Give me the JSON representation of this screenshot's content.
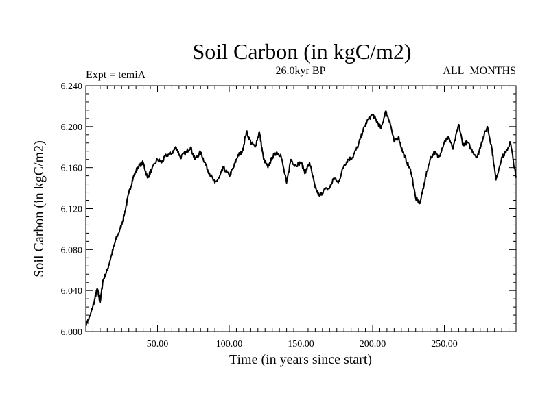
{
  "chart_data": {
    "type": "line",
    "title": "Soil Carbon (in kgC/m2)",
    "subtitle_left": "Expt = temiA",
    "subtitle_center": "26.0kyr BP",
    "subtitle_right": "ALL_MONTHS",
    "xlabel": "Time (in years since start)",
    "ylabel": "Soil Carbon (in kgC/m2)",
    "xlim": [
      0,
      300
    ],
    "ylim": [
      6.0,
      6.24
    ],
    "x_ticks": [
      50,
      100,
      150,
      200,
      250
    ],
    "x_tick_labels": [
      "50.00",
      "100.00",
      "150.00",
      "200.00",
      "250.00"
    ],
    "y_ticks": [
      6.0,
      6.04,
      6.08,
      6.12,
      6.16,
      6.2,
      6.24
    ],
    "y_tick_labels": [
      "6.000",
      "6.040",
      "6.080",
      "6.120",
      "6.160",
      "6.200",
      "6.240"
    ],
    "grid": false,
    "color": "#000000",
    "series": [
      {
        "name": "Soil Carbon",
        "x": [
          0,
          3,
          6,
          8,
          10,
          12,
          15,
          18,
          21,
          24,
          27,
          30,
          33,
          36,
          40,
          43,
          46,
          50,
          53,
          56,
          60,
          63,
          66,
          70,
          73,
          76,
          80,
          83,
          86,
          90,
          93,
          96,
          100,
          103,
          106,
          109,
          112,
          115,
          118,
          121,
          124,
          127,
          130,
          133,
          136,
          140,
          143,
          146,
          150,
          153,
          156,
          160,
          163,
          166,
          170,
          173,
          176,
          180,
          183,
          186,
          190,
          193,
          196,
          200,
          203,
          206,
          209,
          212,
          215,
          218,
          221,
          224,
          227,
          230,
          233,
          236,
          240,
          243,
          246,
          250,
          253,
          256,
          260,
          263,
          266,
          270,
          273,
          276,
          280,
          283,
          286,
          290,
          293,
          296,
          300
        ],
        "values": [
          6.007,
          6.015,
          6.03,
          6.042,
          6.028,
          6.05,
          6.06,
          6.075,
          6.09,
          6.1,
          6.115,
          6.135,
          6.15,
          6.16,
          6.165,
          6.15,
          6.158,
          6.168,
          6.165,
          6.172,
          6.174,
          6.18,
          6.17,
          6.175,
          6.18,
          6.168,
          6.175,
          6.165,
          6.155,
          6.145,
          6.15,
          6.16,
          6.152,
          6.16,
          6.172,
          6.175,
          6.195,
          6.185,
          6.18,
          6.195,
          6.168,
          6.16,
          6.17,
          6.175,
          6.172,
          6.145,
          6.168,
          6.162,
          6.165,
          6.155,
          6.165,
          6.14,
          6.132,
          6.138,
          6.14,
          6.15,
          6.145,
          6.162,
          6.168,
          6.17,
          6.182,
          6.195,
          6.205,
          6.212,
          6.205,
          6.198,
          6.215,
          6.205,
          6.185,
          6.19,
          6.175,
          6.165,
          6.155,
          6.13,
          6.125,
          6.145,
          6.168,
          6.175,
          6.17,
          6.185,
          6.19,
          6.178,
          6.202,
          6.182,
          6.185,
          6.175,
          6.17,
          6.185,
          6.2,
          6.18,
          6.148,
          6.17,
          6.175,
          6.185,
          6.15
        ]
      }
    ]
  }
}
